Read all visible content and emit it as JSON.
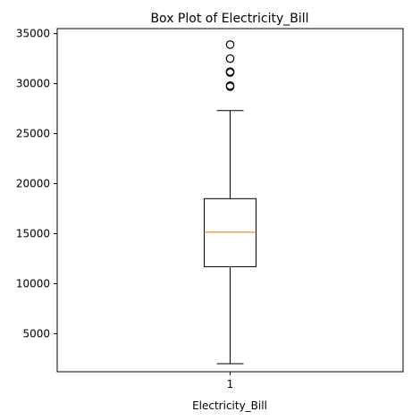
{
  "chart_data": {
    "type": "box",
    "title": "Box Plot of Electricity_Bill",
    "xlabel": "Electricity_Bill",
    "ylabel": "",
    "categories": [
      "1"
    ],
    "series": [
      {
        "category": "1",
        "whisker_low": 2000,
        "q1": 11700,
        "median": 15150,
        "q3": 18500,
        "whisker_high": 27300,
        "outliers": [
          29700,
          29800,
          31100,
          31200,
          32500,
          33900
        ]
      }
    ],
    "ylim": [
      1200,
      35500
    ],
    "y_ticks": [
      5000,
      10000,
      15000,
      20000,
      25000,
      30000,
      35000
    ],
    "y_tick_labels": [
      "5000",
      "10000",
      "15000",
      "20000",
      "25000",
      "30000",
      "35000"
    ],
    "grid": false,
    "colors": {
      "box": "#000000",
      "median": "#ff7f0e",
      "whisker": "#000000",
      "outlier": "#000000",
      "axes": "#000000",
      "background": "#ffffff"
    }
  }
}
